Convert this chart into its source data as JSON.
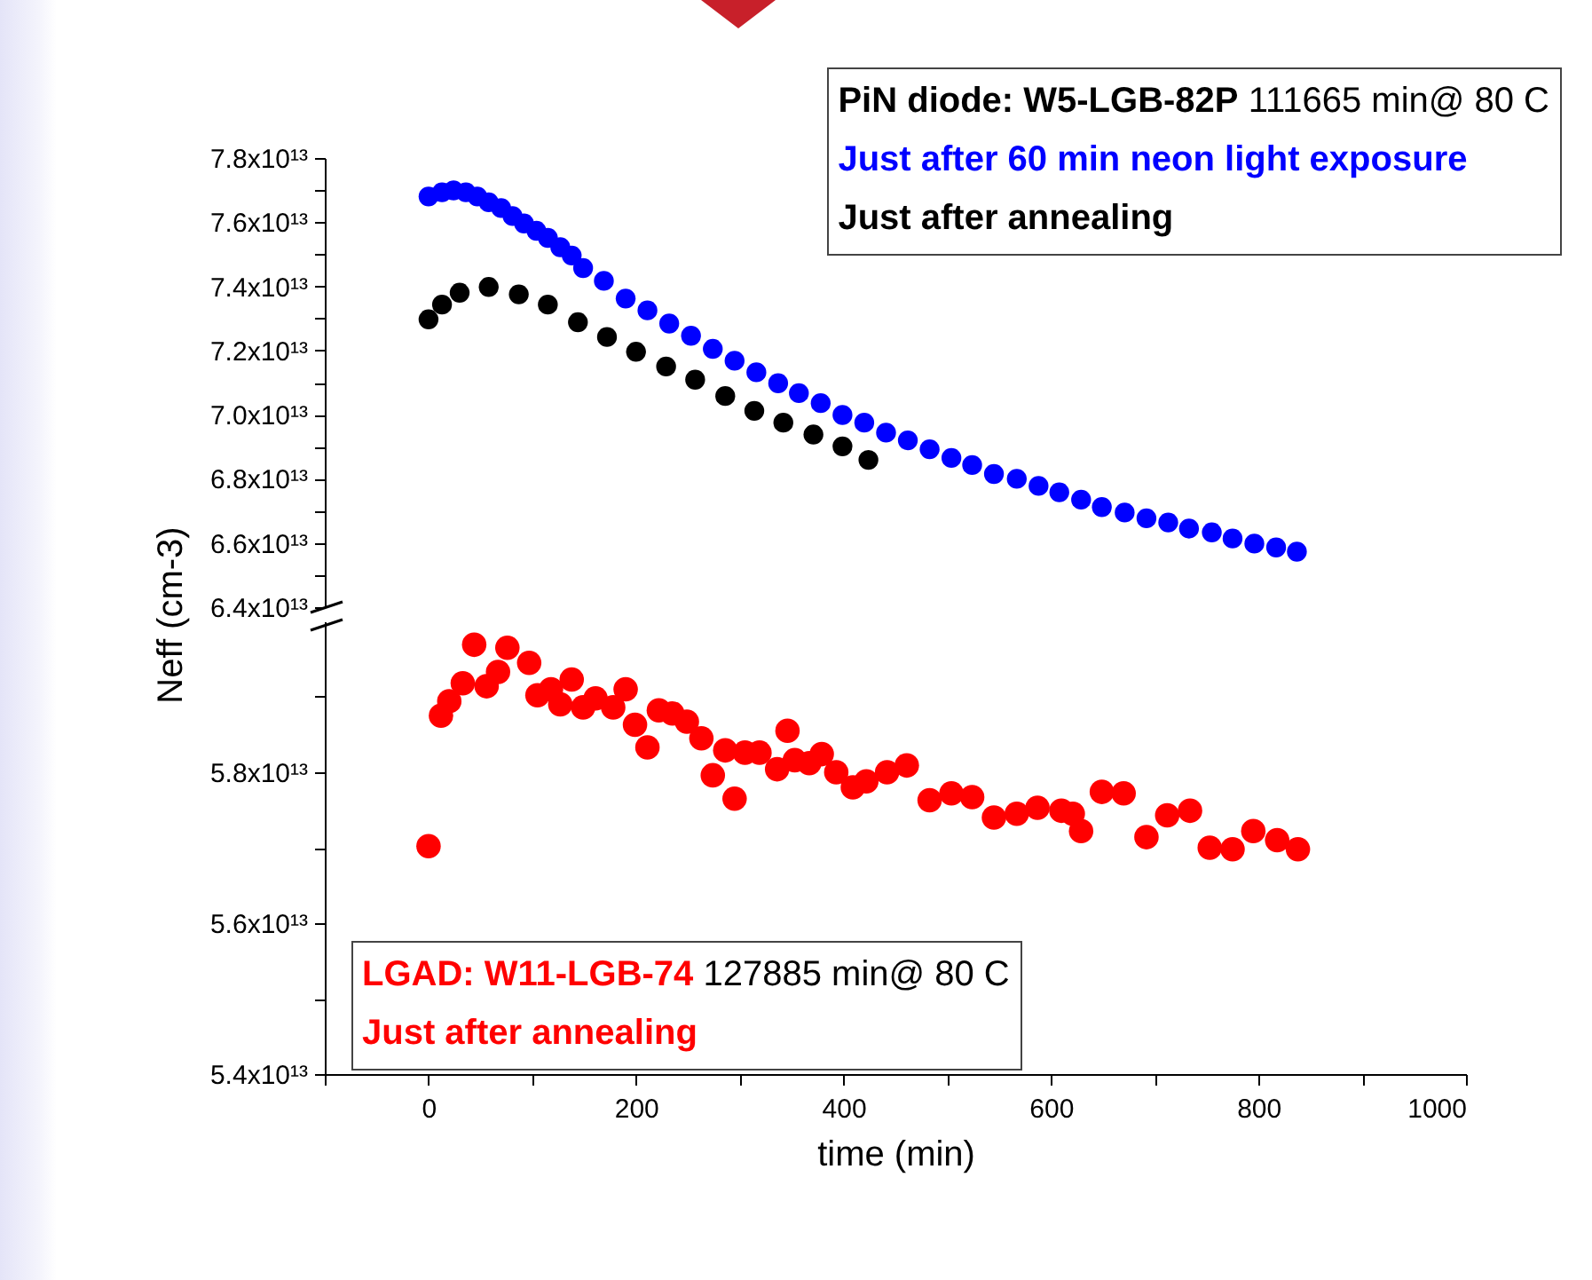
{
  "chart_data": [
    {
      "type": "scatter",
      "ylabel": "Neff (cm-3)",
      "legend": "top right",
      "legend_title": "PiN diode: W5-LGB-82P 111665 min@ 80 C",
      "marker": "circle",
      "tick_labels": "y",
      "xlim": [
        -100,
        1000
      ],
      "ylim": [
        64000000000000.0,
        78000000000000.0
      ],
      "yticks": [
        {
          "value": 64000000000000.0,
          "label": "6.4x10¹³"
        },
        {
          "value": 65000000000000.0,
          "label": null
        },
        {
          "value": 66000000000000.0,
          "label": "6.6x10¹³"
        },
        {
          "value": 67000000000000.0,
          "label": null
        },
        {
          "value": 68000000000000.0,
          "label": "6.8x10¹³"
        },
        {
          "value": 69000000000000.0,
          "label": null
        },
        {
          "value": 70000000000000.0,
          "label": "7.0x10¹³"
        },
        {
          "value": 71000000000000.0,
          "label": null
        },
        {
          "value": 72000000000000.0,
          "label": "7.2x10¹³"
        },
        {
          "value": 73000000000000.0,
          "label": null
        },
        {
          "value": 74000000000000.0,
          "label": "7.4x10¹³"
        },
        {
          "value": 75000000000000.0,
          "label": null
        },
        {
          "value": 76000000000000.0,
          "label": "7.6x10¹³"
        },
        {
          "value": 77000000000000.0,
          "label": null
        },
        {
          "value": 78000000000000.0,
          "label": "7.8x10¹³"
        }
      ],
      "series": [
        {
          "name": "Just after 60 min neon light exposure",
          "color": "#0000ff",
          "x": [
            0,
            13,
            24,
            36,
            47,
            58,
            70,
            81,
            92,
            104,
            115,
            127,
            138,
            149,
            169,
            190,
            211,
            232,
            253,
            274,
            295,
            316,
            337,
            357,
            378,
            399,
            420,
            441,
            462,
            483,
            504,
            524,
            545,
            567,
            588,
            608,
            629,
            649,
            671,
            692,
            713,
            733,
            755,
            775,
            796,
            817,
            837
          ],
          "values": [
            76800000000000.0,
            76930000000000.0,
            76990000000000.0,
            76930000000000.0,
            76800000000000.0,
            76620000000000.0,
            76440000000000.0,
            76190000000000.0,
            75960000000000.0,
            75730000000000.0,
            75510000000000.0,
            75220000000000.0,
            74960000000000.0,
            74570000000000.0,
            74170000000000.0,
            73620000000000.0,
            73250000000000.0,
            72840000000000.0,
            72460000000000.0,
            72050000000000.0,
            71680000000000.0,
            71320000000000.0,
            70980000000000.0,
            70670000000000.0,
            70360000000000.0,
            69990000000000.0,
            69750000000000.0,
            69440000000000.0,
            69200000000000.0,
            68920000000000.0,
            68650000000000.0,
            68430000000000.0,
            68150000000000.0,
            68000000000000.0,
            67780000000000.0,
            67580000000000.0,
            67350000000000.0,
            67120000000000.0,
            66950000000000.0,
            66770000000000.0,
            66640000000000.0,
            66450000000000.0,
            66330000000000.0,
            66140000000000.0,
            65980000000000.0,
            65860000000000.0,
            65730000000000.0
          ]
        },
        {
          "name": "Just after annealing",
          "color": "#000000",
          "x": [
            0,
            13,
            30,
            58,
            87,
            115,
            144,
            172,
            200,
            229,
            257,
            286,
            314,
            342,
            371,
            399,
            424
          ],
          "values": [
            72970000000000.0,
            73430000000000.0,
            73800000000000.0,
            73980000000000.0,
            73750000000000.0,
            73430000000000.0,
            72880000000000.0,
            72420000000000.0,
            71960000000000.0,
            71500000000000.0,
            71090000000000.0,
            70580000000000.0,
            70120000000000.0,
            69750000000000.0,
            69380000000000.0,
            69010000000000.0,
            68590000000000.0
          ]
        }
      ]
    },
    {
      "type": "scatter",
      "xlabel": "time (min)",
      "legend": "bottom left",
      "legend_title": "LGAD: W11-LGB-74 127885 min@ 80 C",
      "marker": "circle",
      "xlim": [
        -100,
        1000
      ],
      "ylim": [
        54000000000000.0,
        60000000000000.0
      ],
      "xticks": [
        {
          "value": -100,
          "label": null
        },
        0,
        {
          "value": 100,
          "label": null
        },
        200,
        {
          "value": 300,
          "label": null
        },
        400,
        {
          "value": 500,
          "label": null
        },
        600,
        {
          "value": 700,
          "label": null
        },
        800,
        {
          "value": 900,
          "label": null
        },
        1000
      ],
      "yticks": [
        {
          "value": 54000000000000.0,
          "label": "5.4x10¹³"
        },
        {
          "value": 55000000000000.0,
          "label": null
        },
        {
          "value": 56000000000000.0,
          "label": "5.6x10¹³"
        },
        {
          "value": 57000000000000.0,
          "label": null
        },
        {
          "value": 58000000000000.0,
          "label": "5.8x10¹³"
        },
        {
          "value": 59000000000000.0,
          "label": null
        }
      ],
      "series": [
        {
          "name": "Just after annealing",
          "color": "#ff0000",
          "x": [
            0,
            12,
            20,
            33,
            44,
            56,
            67,
            76,
            97,
            105,
            118,
            127,
            138,
            149,
            161,
            178,
            190,
            199,
            211,
            222,
            235,
            249,
            263,
            274,
            286,
            295,
            305,
            319,
            336,
            346,
            353,
            367,
            379,
            393,
            409,
            422,
            442,
            461,
            483,
            504,
            524,
            545,
            567,
            587,
            610,
            621,
            629,
            649,
            670,
            692,
            712,
            734,
            753,
            775,
            795,
            818,
            838
          ],
          "values": [
            57020000000000.0,
            58750000000000.0,
            58940000000000.0,
            59180000000000.0,
            59690000000000.0,
            59140000000000.0,
            59330000000000.0,
            59650000000000.0,
            59450000000000.0,
            59020000000000.0,
            59100000000000.0,
            58900000000000.0,
            59230000000000.0,
            58860000000000.0,
            58980000000000.0,
            58860000000000.0,
            59100000000000.0,
            58630000000000.0,
            58330000000000.0,
            58820000000000.0,
            58780000000000.0,
            58670000000000.0,
            58450000000000.0,
            57960000000000.0,
            58290000000000.0,
            57650000000000.0,
            58260000000000.0,
            58260000000000.0,
            58040000000000.0,
            58550000000000.0,
            58160000000000.0,
            58120000000000.0,
            58240000000000.0,
            58000000000000.0,
            57800000000000.0,
            57880000000000.0,
            58000000000000.0,
            58090000000000.0,
            57630000000000.0,
            57720000000000.0,
            57670000000000.0,
            57400000000000.0,
            57450000000000.0,
            57530000000000.0,
            57490000000000.0,
            57450000000000.0,
            57220000000000.0,
            57740000000000.0,
            57720000000000.0,
            57140000000000.0,
            57430000000000.0,
            57490000000000.0,
            57000000000000.0,
            56980000000000.0,
            57220000000000.0,
            57100000000000.0,
            56980000000000.0
          ]
        }
      ]
    }
  ]
}
